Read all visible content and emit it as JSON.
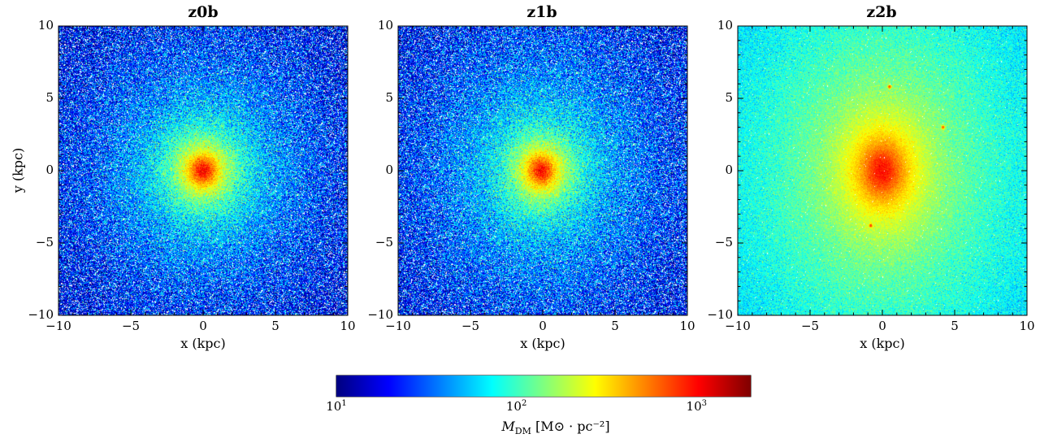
{
  "chart_data": [
    {
      "type": "heatmap",
      "title": "z0b",
      "xlabel": "x (kpc)",
      "ylabel": "y (kpc)",
      "xlim": [
        -10,
        10
      ],
      "ylim": [
        -10,
        10
      ],
      "xticks": [
        "−10",
        "−5",
        "0",
        "5",
        "10"
      ],
      "yticks": [
        "10",
        "5",
        "0",
        "−5",
        "−10"
      ],
      "peak_center": [
        0,
        0
      ],
      "peak_value": 1500,
      "background_value": 10,
      "core_scale_kpc": 1.2,
      "halo_scale_kpc": 5.0,
      "ellipticity": 0.05
    },
    {
      "type": "heatmap",
      "title": "z1b",
      "xlabel": "x (kpc)",
      "ylabel": "",
      "xlim": [
        -10,
        10
      ],
      "ylim": [
        -10,
        10
      ],
      "xticks": [
        "−10",
        "−5",
        "0",
        "5",
        "10"
      ],
      "yticks": [
        "10",
        "5",
        "0",
        "−5",
        "−10"
      ],
      "peak_center": [
        -0.1,
        0
      ],
      "peak_value": 1400,
      "background_value": 10,
      "core_scale_kpc": 1.2,
      "halo_scale_kpc": 5.5,
      "ellipticity": 0.1
    },
    {
      "type": "heatmap",
      "title": "z2b",
      "xlabel": "x (kpc)",
      "ylabel": "",
      "xlim": [
        -10,
        10
      ],
      "ylim": [
        -10,
        10
      ],
      "xticks": [
        "−10",
        "−5",
        "0",
        "5",
        "10"
      ],
      "yticks": [
        "10",
        "5",
        "0",
        "−5",
        "−10"
      ],
      "peak_center": [
        0,
        0
      ],
      "peak_value": 1300,
      "background_value": 25,
      "core_scale_kpc": 2.0,
      "halo_scale_kpc": 9.0,
      "ellipticity": 0.25,
      "substructures": [
        [
          0.5,
          5.8
        ],
        [
          -0.8,
          -3.8
        ],
        [
          4.2,
          3.0
        ]
      ]
    }
  ],
  "colorbar": {
    "label_main": "M",
    "label_sub": "DM",
    "label_units": "[M⊙ · pc⁻²]",
    "scale": "log",
    "vmin": 10,
    "vmax": 2000,
    "ticks": [
      {
        "base": "10",
        "exp": "1",
        "value": 10
      },
      {
        "base": "10",
        "exp": "2",
        "value": 100
      },
      {
        "base": "10",
        "exp": "3",
        "value": 1000
      }
    ],
    "colormap": "jet"
  }
}
